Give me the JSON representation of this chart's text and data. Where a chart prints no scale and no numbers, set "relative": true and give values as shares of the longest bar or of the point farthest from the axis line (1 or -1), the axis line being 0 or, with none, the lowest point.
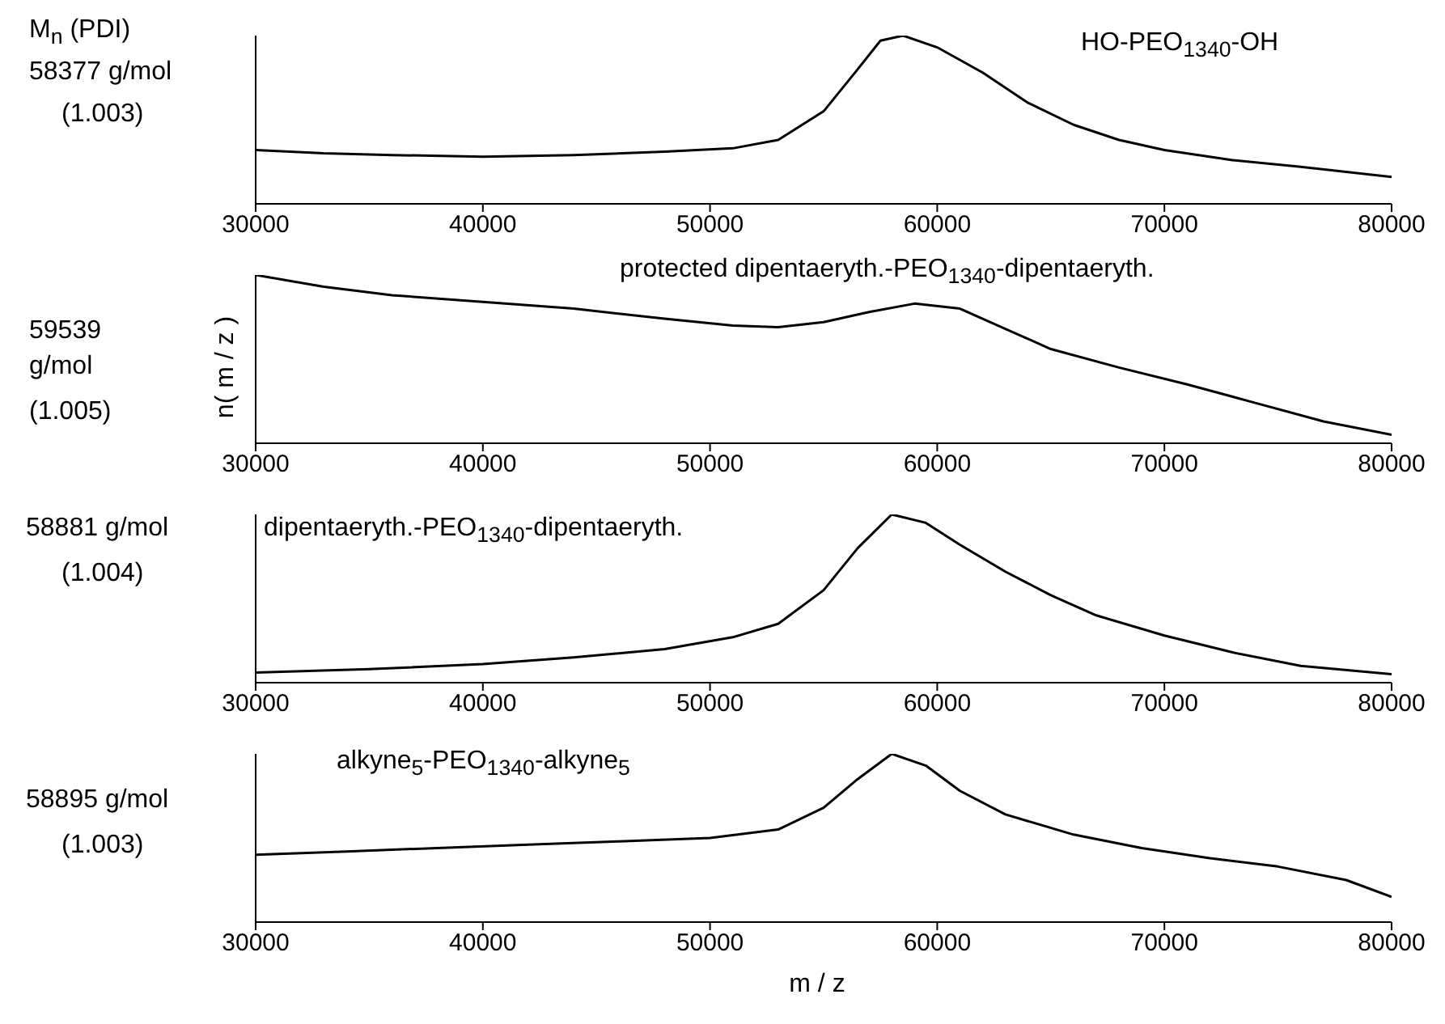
{
  "chart_data": [
    {
      "type": "line",
      "relative": true,
      "tick_labels": "x",
      "xlim": [
        30000,
        80000
      ],
      "xticks": [
        30000,
        40000,
        50000,
        60000,
        70000,
        80000
      ],
      "annotations": [
        "M$_{n}$ (PDI)",
        "58377 g/mol",
        "(1.003)",
        "HO-PEO$_{1340}$-OH"
      ],
      "series": [
        {
          "color": "#000000",
          "x": [
            30000,
            33000,
            36000,
            40000,
            44000,
            48000,
            51000,
            53000,
            55000,
            56500,
            57500,
            58500,
            60000,
            62000,
            64000,
            66000,
            68000,
            70000,
            73000,
            76000,
            80000
          ],
          "values": [
            0.32,
            0.3,
            0.29,
            0.28,
            0.29,
            0.31,
            0.33,
            0.38,
            0.55,
            0.8,
            0.97,
            1,
            0.93,
            0.78,
            0.6,
            0.47,
            0.38,
            0.32,
            0.26,
            0.22,
            0.16
          ]
        }
      ]
    },
    {
      "type": "line",
      "relative": true,
      "tick_labels": "x",
      "xlim": [
        30000,
        80000
      ],
      "xticks": [
        30000,
        40000,
        50000,
        60000,
        70000,
        80000
      ],
      "ylabel": "n( m / z )",
      "annotations": [
        "59539 g/mol",
        "(1.005)",
        "protected dipentaeryth.-PEO$_{1340}$-dipentaeryth."
      ],
      "series": [
        {
          "color": "#000000",
          "x": [
            30000,
            33000,
            36000,
            40000,
            44000,
            48000,
            51000,
            53000,
            55000,
            57000,
            59000,
            61000,
            63000,
            65000,
            68000,
            71000,
            74000,
            77000,
            80000
          ],
          "values": [
            1,
            0.93,
            0.88,
            0.84,
            0.8,
            0.74,
            0.7,
            0.69,
            0.72,
            0.78,
            0.83,
            0.8,
            0.68,
            0.56,
            0.45,
            0.35,
            0.24,
            0.13,
            0.05
          ]
        }
      ]
    },
    {
      "type": "line",
      "relative": true,
      "tick_labels": "x",
      "xlim": [
        30000,
        80000
      ],
      "xticks": [
        30000,
        40000,
        50000,
        60000,
        70000,
        80000
      ],
      "annotations": [
        "58881 g/mol",
        "(1.004)",
        "dipentaeryth.-PEO$_{1340}$-dipentaeryth."
      ],
      "series": [
        {
          "color": "#000000",
          "x": [
            30000,
            35000,
            40000,
            44000,
            48000,
            51000,
            53000,
            55000,
            56500,
            58000,
            59500,
            61000,
            63000,
            65000,
            67000,
            70000,
            73000,
            76000,
            80000
          ],
          "values": [
            0.06,
            0.08,
            0.11,
            0.15,
            0.2,
            0.27,
            0.35,
            0.55,
            0.8,
            1,
            0.95,
            0.82,
            0.66,
            0.52,
            0.4,
            0.28,
            0.18,
            0.1,
            0.05
          ]
        }
      ]
    },
    {
      "type": "line",
      "relative": true,
      "tick_labels": "x",
      "xlim": [
        30000,
        80000
      ],
      "xticks": [
        30000,
        40000,
        50000,
        60000,
        70000,
        80000
      ],
      "xlabel": "m / z",
      "annotations": [
        "58895 g/mol",
        "(1.003)",
        "alkyne$_{5}$-PEO$_{1340}$-alkyne$_{5}$"
      ],
      "series": [
        {
          "color": "#000000",
          "x": [
            30000,
            34000,
            38000,
            42000,
            46000,
            50000,
            53000,
            55000,
            56500,
            58000,
            59500,
            61000,
            63000,
            66000,
            69000,
            72000,
            75000,
            78000,
            80000
          ],
          "values": [
            0.4,
            0.42,
            0.44,
            0.46,
            0.48,
            0.5,
            0.55,
            0.68,
            0.85,
            1,
            0.93,
            0.78,
            0.64,
            0.52,
            0.44,
            0.38,
            0.33,
            0.25,
            0.15
          ]
        }
      ]
    }
  ]
}
